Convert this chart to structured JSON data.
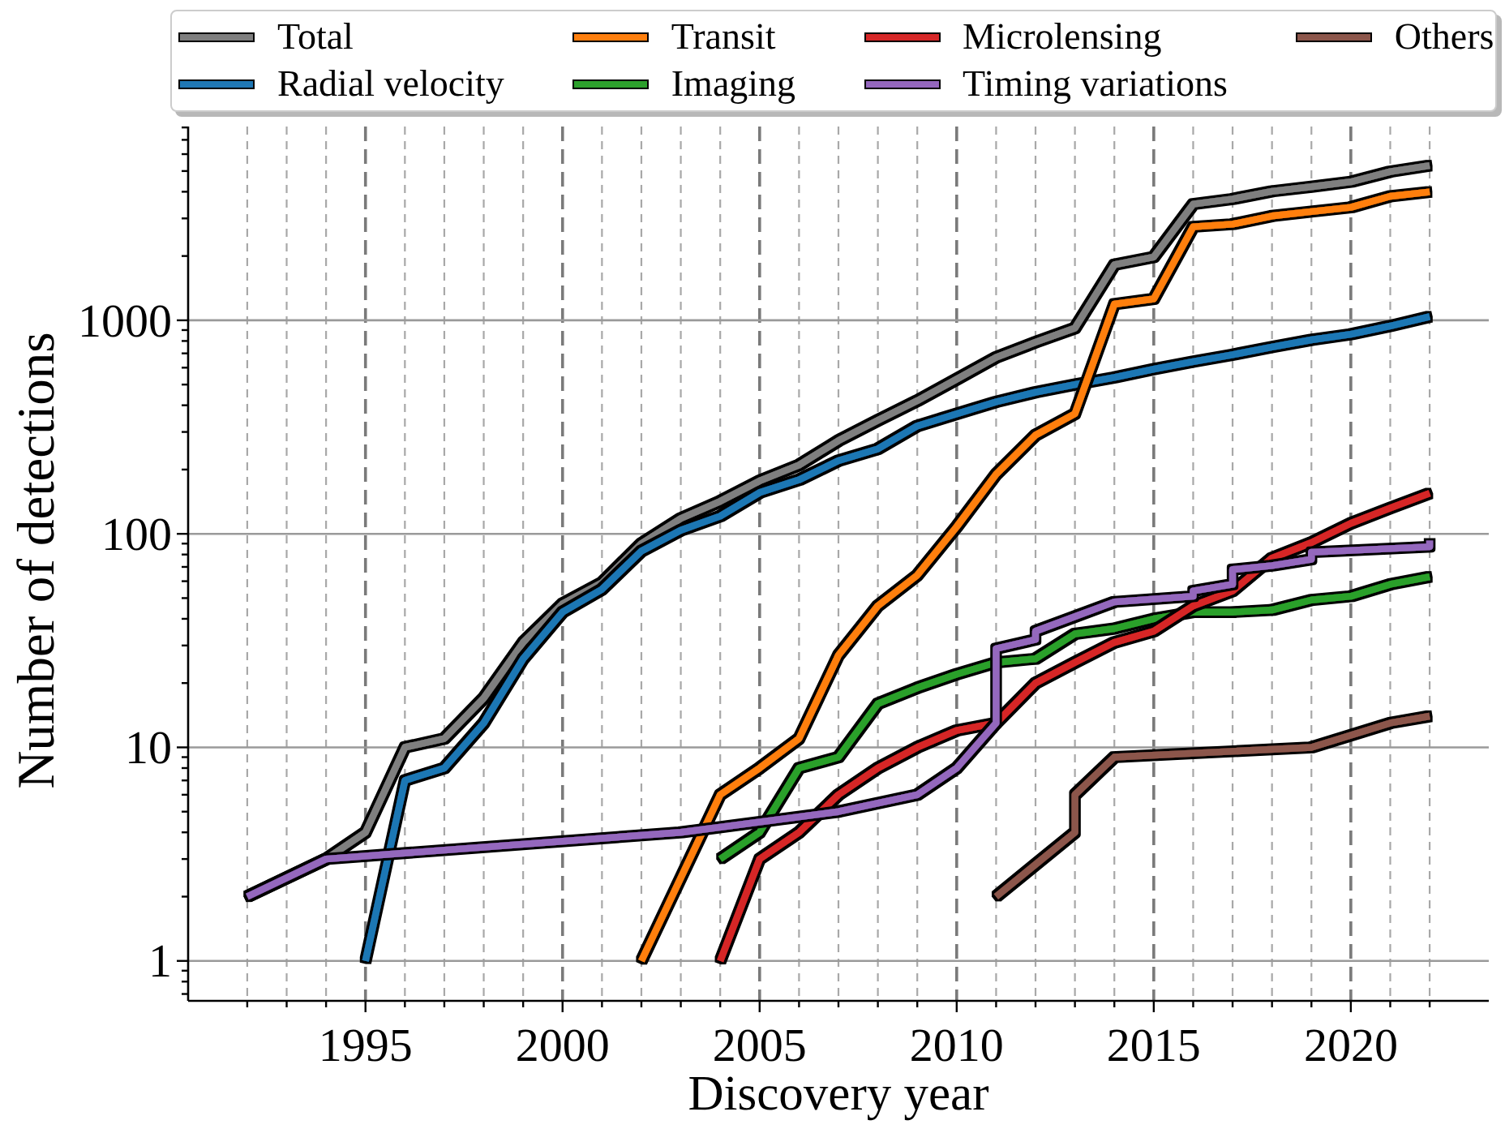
{
  "chart_data": {
    "type": "line",
    "xlabel": "Discovery year",
    "ylabel": "Number of detections",
    "log": "y",
    "grid": true,
    "legend": "top",
    "xlim": [
      1990.5,
      2023.5
    ],
    "ylim": [
      0.65,
      8080
    ],
    "xticks": [
      {
        "value": 1992,
        "label": null
      },
      {
        "value": 1993,
        "label": null
      },
      {
        "value": 1994,
        "label": null
      },
      1995,
      {
        "value": 1996,
        "label": null
      },
      {
        "value": 1997,
        "label": null
      },
      {
        "value": 1998,
        "label": null
      },
      {
        "value": 1999,
        "label": null
      },
      2000,
      {
        "value": 2001,
        "label": null
      },
      {
        "value": 2002,
        "label": null
      },
      {
        "value": 2003,
        "label": null
      },
      {
        "value": 2004,
        "label": null
      },
      2005,
      {
        "value": 2006,
        "label": null
      },
      {
        "value": 2007,
        "label": null
      },
      {
        "value": 2008,
        "label": null
      },
      {
        "value": 2009,
        "label": null
      },
      2010,
      {
        "value": 2011,
        "label": null
      },
      {
        "value": 2012,
        "label": null
      },
      {
        "value": 2013,
        "label": null
      },
      {
        "value": 2014,
        "label": null
      },
      2015,
      {
        "value": 2016,
        "label": null
      },
      {
        "value": 2017,
        "label": null
      },
      {
        "value": 2018,
        "label": null
      },
      {
        "value": 2019,
        "label": null
      },
      2020,
      {
        "value": 2021,
        "label": null
      },
      {
        "value": 2022,
        "label": null
      }
    ],
    "yticks": [
      {
        "value": 0.7,
        "label": null
      },
      {
        "value": 0.8,
        "label": null
      },
      {
        "value": 0.9,
        "label": null
      },
      1,
      {
        "value": 2,
        "label": null
      },
      {
        "value": 3,
        "label": null
      },
      {
        "value": 4,
        "label": null
      },
      {
        "value": 5,
        "label": null
      },
      {
        "value": 6,
        "label": null
      },
      {
        "value": 7,
        "label": null
      },
      {
        "value": 8,
        "label": null
      },
      {
        "value": 9,
        "label": null
      },
      10,
      {
        "value": 20,
        "label": null
      },
      {
        "value": 30,
        "label": null
      },
      {
        "value": 40,
        "label": null
      },
      {
        "value": 50,
        "label": null
      },
      {
        "value": 60,
        "label": null
      },
      {
        "value": 70,
        "label": null
      },
      {
        "value": 80,
        "label": null
      },
      {
        "value": 90,
        "label": null
      },
      100,
      {
        "value": 200,
        "label": null
      },
      {
        "value": 300,
        "label": null
      },
      {
        "value": 400,
        "label": null
      },
      {
        "value": 500,
        "label": null
      },
      {
        "value": 600,
        "label": null
      },
      {
        "value": 700,
        "label": null
      },
      {
        "value": 800,
        "label": null
      },
      {
        "value": 900,
        "label": null
      },
      1000,
      {
        "value": 2000,
        "label": null
      },
      {
        "value": 3000,
        "label": null
      },
      {
        "value": 4000,
        "label": null
      },
      {
        "value": 5000,
        "label": null
      },
      {
        "value": 6000,
        "label": null
      },
      {
        "value": 7000,
        "label": null
      },
      {
        "value": 8000,
        "label": null
      }
    ],
    "series": [
      {
        "name": "Total",
        "color": "#7f7f7f",
        "x": [
          1992,
          1994,
          1995,
          1996,
          1997,
          1998,
          1999,
          2000,
          2001,
          2002,
          2003,
          2004,
          2005,
          2006,
          2007,
          2008,
          2009,
          2010,
          2011,
          2012,
          2013,
          2014,
          2015,
          2016,
          2017,
          2018,
          2019,
          2020,
          2021,
          2022
        ],
        "values": [
          2,
          3,
          4,
          10,
          11,
          17,
          31,
          47,
          59,
          90,
          118,
          142,
          177,
          210,
          273,
          340,
          420,
          530,
          670,
          790,
          920,
          1820,
          1980,
          3500,
          3700,
          4020,
          4220,
          4450,
          4970,
          5300
        ]
      },
      {
        "name": "Radial velocity",
        "color": "#1f77b4",
        "x": [
          1995,
          1996,
          1997,
          1998,
          1999,
          2000,
          2001,
          2002,
          2003,
          2004,
          2005,
          2006,
          2007,
          2008,
          2009,
          2010,
          2011,
          2012,
          2013,
          2014,
          2015,
          2016,
          2017,
          2018,
          2019,
          2020,
          2021,
          2022
        ],
        "values": [
          1,
          7,
          8,
          13,
          26,
          43,
          55,
          83,
          104,
          121,
          156,
          179,
          220,
          250,
          320,
          365,
          415,
          460,
          500,
          540,
          590,
          640,
          690,
          750,
          810,
          860,
          940,
          1040
        ]
      },
      {
        "name": "Transit",
        "color": "#ff7f0e",
        "x": [
          2002,
          2004,
          2005,
          2006,
          2007,
          2008,
          2009,
          2010,
          2011,
          2012,
          2013,
          2014,
          2015,
          2016,
          2017,
          2018,
          2019,
          2020,
          2021,
          2022
        ],
        "values": [
          1,
          6,
          8,
          11,
          27,
          46,
          64,
          108,
          190,
          290,
          365,
          1190,
          1260,
          2740,
          2820,
          3080,
          3230,
          3380,
          3810,
          3990
        ]
      },
      {
        "name": "Imaging",
        "color": "#2ca02c",
        "x": [
          2004,
          2005,
          2006,
          2007,
          2008,
          2009,
          2010,
          2011,
          2012,
          2013,
          2014,
          2015,
          2016,
          2017,
          2018,
          2019,
          2020,
          2021,
          2022
        ],
        "values": [
          3,
          4,
          8,
          9,
          16,
          19,
          22,
          25,
          26,
          34,
          36,
          40,
          43,
          43,
          44,
          49,
          51,
          58,
          63
        ]
      },
      {
        "name": "Microlensing",
        "color": "#d62728",
        "x": [
          2004,
          2005,
          2006,
          2007,
          2008,
          2009,
          2010,
          2011,
          2012,
          2013,
          2014,
          2015,
          2016,
          2017,
          2018,
          2019,
          2020,
          2021,
          2022
        ],
        "values": [
          1,
          3,
          4,
          6,
          8,
          10,
          12,
          13,
          20,
          25,
          31,
          35,
          46,
          54,
          77,
          91,
          112,
          132,
          155
        ]
      },
      {
        "name": "Timing variations",
        "color": "#9467bd",
        "x": [
          1992,
          1994,
          2003,
          2007,
          2009,
          2010,
          2011,
          2011,
          2012,
          2012,
          2014,
          2016,
          2016,
          2017,
          2017,
          2018,
          2019,
          2019,
          2022,
          2022
        ],
        "values": [
          2,
          3,
          4,
          5,
          6,
          8,
          13,
          29,
          32,
          35,
          48,
          51,
          54,
          58,
          68,
          71,
          76,
          82,
          87,
          93
        ]
      },
      {
        "name": "Others",
        "color": "#8c564b",
        "x": [
          2011,
          2013,
          2013,
          2014,
          2019,
          2021,
          2022
        ],
        "values": [
          2,
          4,
          6,
          9,
          10,
          13,
          14
        ]
      }
    ]
  }
}
